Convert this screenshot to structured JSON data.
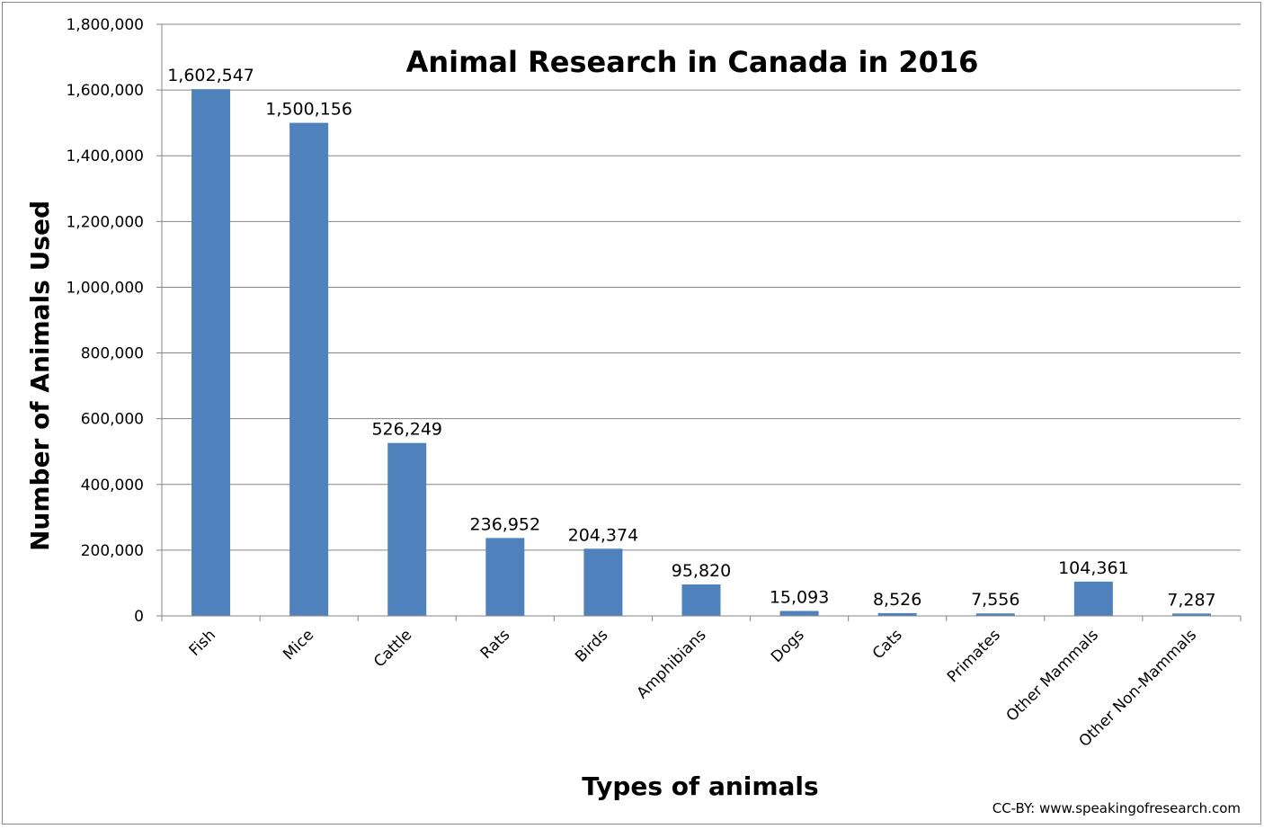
{
  "chart_data": {
    "type": "bar",
    "title": "Animal Research in Canada in 2016",
    "xlabel": "Types of animals",
    "ylabel": "Number of Animals Used",
    "ylim": [
      0,
      1800000
    ],
    "yticks": [
      0,
      200000,
      400000,
      600000,
      800000,
      1000000,
      1200000,
      1400000,
      1600000,
      1800000
    ],
    "ytick_labels": [
      "0",
      "200,000",
      "400,000",
      "600,000",
      "800,000",
      "1,000,000",
      "1,200,000",
      "1,400,000",
      "1,600,000",
      "1,800,000"
    ],
    "grid": true,
    "categories": [
      "Fish",
      "Mice",
      "Cattle",
      "Rats",
      "Birds",
      "Amphibians",
      "Dogs",
      "Cats",
      "Primates",
      "Other Mammals",
      "Other Non-Mammals"
    ],
    "values": [
      1602547,
      1500156,
      526249,
      236952,
      204374,
      95820,
      15093,
      8526,
      7556,
      104361,
      7287
    ],
    "data_labels": [
      "1,602,547",
      "1,500,156",
      "526,249",
      "236,952",
      "204,374",
      "95,820",
      "15,093",
      "8,526",
      "7,556",
      "104,361",
      "7,287"
    ],
    "bar_color": "#4F81BD",
    "credit": "CC-BY: www.speakingofresearch.com"
  }
}
